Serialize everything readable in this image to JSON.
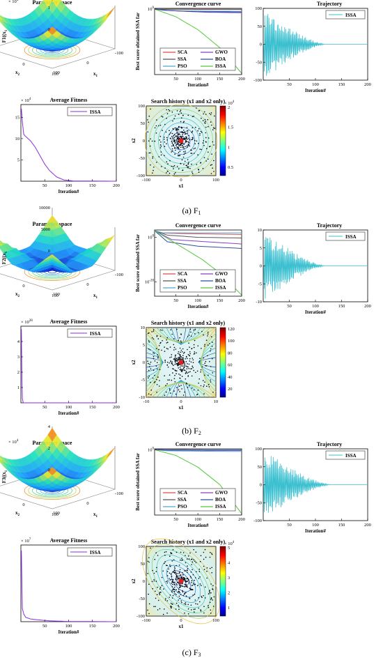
{
  "figure": {
    "captions": [
      {
        "letter": "(a)",
        "func": "F",
        "sub": "1"
      },
      {
        "letter": "(b)",
        "func": "F",
        "sub": "2"
      },
      {
        "letter": "(c)",
        "func": "F",
        "sub": "3"
      }
    ]
  },
  "colors": {
    "SCA": "#e04848",
    "SSA": "#555555",
    "PSO": "#4aa6d8",
    "GWO": "#8a3fc2",
    "BOA": "#2e4f9e",
    "ISSA": "#55c83a",
    "trajectory": "#3cc0d0",
    "fitness": "#8a2be2",
    "point": "#000000",
    "best": "#e02020"
  },
  "chart_data": [
    {
      "id": "f1-param",
      "type": "surface",
      "title": "Parameter space",
      "zlabel": "F1( x , x )",
      "zlabel_subs": [
        "1",
        "2"
      ],
      "xlabel": "x",
      "xlabel_sub": "1",
      "ylabel": "x",
      "ylabel_sub": "2",
      "exponent": "× 10^4",
      "zticks": [
        "0",
        "1",
        "2"
      ],
      "xticks": [
        "-100",
        "0",
        "100"
      ],
      "yticks": [
        "-100",
        "0",
        "100"
      ]
    },
    {
      "id": "f1-conv",
      "type": "line",
      "title": "Convergence curve",
      "ylabel": "Best score obtained SSA far",
      "xlabel": "Iteration#",
      "xlim": [
        1,
        200
      ],
      "yscale": "log",
      "xticks": [
        "50",
        "100",
        "150",
        "200"
      ],
      "yticks": [
        "10^0"
      ],
      "series": [
        {
          "name": "SCA",
          "x": [
            1,
            10,
            40,
            200
          ],
          "y": [
            1,
            0.95,
            0.9,
            0.85
          ]
        },
        {
          "name": "SSA",
          "x": [
            1,
            30,
            100,
            200
          ],
          "y": [
            1,
            0.9,
            0.85,
            0.84
          ]
        },
        {
          "name": "PSO",
          "x": [
            1,
            20,
            60,
            200
          ],
          "y": [
            1,
            0.4,
            0.2,
            0.15
          ]
        },
        {
          "name": "GWO",
          "x": [
            1,
            40,
            120,
            200
          ],
          "y": [
            1,
            0.25,
            0.06,
            0.04
          ]
        },
        {
          "name": "BOA",
          "x": [
            1,
            30,
            100,
            200
          ],
          "y": [
            1,
            0.3,
            0.1,
            0.08
          ]
        },
        {
          "name": "ISSA",
          "x": [
            1,
            50,
            100,
            150,
            200
          ],
          "y": [
            1,
            0.001,
            1e-08,
            1e-15,
            1e-25
          ]
        }
      ]
    },
    {
      "id": "f1-traj",
      "type": "oscillation",
      "title": "Trajectory",
      "legend": "ISSA",
      "xlabel": "Iteration#",
      "ylim": [
        -100,
        100
      ],
      "yticks": [
        "-100",
        "-50",
        "0",
        "50",
        "100"
      ],
      "xticks": [
        "50",
        "100",
        "150",
        "200"
      ],
      "amplitude": 100,
      "decay_end": 120,
      "xmax": 200
    },
    {
      "id": "f1-fit",
      "type": "line",
      "title": "Average Fitness",
      "legend": "ISSA",
      "xlabel": "Iteration#",
      "exponent": "× 10^4",
      "yticks": [
        "5",
        "10",
        "15"
      ],
      "xticks": [
        "50",
        "100",
        "150",
        "200"
      ],
      "xlim": [
        0,
        200
      ],
      "ylim": [
        0,
        18
      ],
      "series": [
        {
          "name": "ISSA",
          "x": [
            1,
            3,
            6,
            10,
            15,
            20,
            30,
            40,
            50,
            60,
            75,
            90,
            110,
            200
          ],
          "y": [
            17,
            14,
            11,
            10.5,
            10,
            9.5,
            8,
            6,
            4,
            2.5,
            1,
            0.3,
            0.05,
            0
          ]
        }
      ]
    },
    {
      "id": "f1-hist",
      "type": "scatter",
      "title": "Search history (x1 and x2 only)",
      "xlabel": "x1",
      "ylabel": "x2",
      "xlim": [
        -100,
        100
      ],
      "ylim": [
        -100,
        100
      ],
      "xticks": [
        "-100",
        "0",
        "100"
      ],
      "yticks": [
        "-100",
        "-50",
        "0",
        "50",
        "100"
      ],
      "colorbar_ticks": [
        "0.5",
        "1",
        "1.5",
        "2"
      ],
      "exponent": "× 10^4",
      "contour": "circles"
    },
    {
      "id": "f2-param",
      "type": "surface",
      "title": "Parameter space",
      "zlabel": "F2( x , x )",
      "zlabel_subs": [
        "1",
        "2"
      ],
      "xlabel": "x",
      "xlabel_sub": "1",
      "ylabel": "x",
      "ylabel_sub": "2",
      "exponent": "",
      "zticks": [
        "0",
        "5000",
        "10000"
      ],
      "xticks": [
        "-100",
        "0",
        "100"
      ],
      "yticks": [
        "-100",
        "0",
        "100"
      ]
    },
    {
      "id": "f2-conv",
      "type": "line",
      "title": "Convergence curve",
      "ylabel": "Best score obtained SSA far",
      "xlabel": "Iteration#",
      "xlim": [
        1,
        200
      ],
      "yscale": "log",
      "xticks": [
        "50",
        "100",
        "150",
        "200"
      ],
      "yticks": [
        "10^0",
        "10^-20"
      ],
      "series": [
        {
          "name": "SCA",
          "x": [
            1,
            10,
            60,
            200
          ],
          "y": [
            1000.0,
            100.0,
            50.0,
            20.0
          ]
        },
        {
          "name": "SSA",
          "x": [
            1,
            30,
            100,
            200
          ],
          "y": [
            1000.0,
            10.0,
            1,
            0.5
          ]
        },
        {
          "name": "PSO",
          "x": [
            1,
            20,
            80,
            200
          ],
          "y": [
            1000.0,
            100.0,
            100.0,
            100.0
          ]
        },
        {
          "name": "GWO",
          "x": [
            1,
            40,
            120,
            200
          ],
          "y": [
            1000.0,
            0.1,
            0.01,
            0.001
          ]
        },
        {
          "name": "BOA",
          "x": [
            1,
            30,
            100,
            200
          ],
          "y": [
            1000.0,
            0.01,
            0.0001,
            1e-05
          ]
        },
        {
          "name": "ISSA",
          "x": [
            1,
            60,
            110,
            150,
            200
          ],
          "y": [
            1000.0,
            0.0001,
            1e-10,
            1e-16,
            1e-26
          ]
        }
      ]
    },
    {
      "id": "f2-traj",
      "type": "oscillation",
      "title": "Trajectory",
      "legend": "ISSA",
      "xlabel": "Iteration#",
      "ylim": [
        -10,
        10
      ],
      "yticks": [
        "-10",
        "-5",
        "0",
        "5",
        "10"
      ],
      "xticks": [
        "50",
        "100",
        "150",
        "200"
      ],
      "amplitude": 10,
      "decay_end": 120,
      "xmax": 200
    },
    {
      "id": "f2-fit",
      "type": "line",
      "title": "Average Fitness",
      "legend": "ISSA",
      "xlabel": "Iteration#",
      "exponent": "× 10^28",
      "yticks": [
        "1",
        "2",
        "3",
        "4"
      ],
      "xticks": [
        "50",
        "100",
        "150",
        "200"
      ],
      "xlim": [
        0,
        200
      ],
      "ylim": [
        0,
        5
      ],
      "series": [
        {
          "name": "ISSA",
          "x": [
            1,
            2,
            3,
            5,
            200
          ],
          "y": [
            4.8,
            2,
            0.3,
            0,
            0
          ]
        }
      ]
    },
    {
      "id": "f2-hist",
      "type": "scatter",
      "title": "Search history (x1 and x2 only)",
      "xlabel": "x1",
      "ylabel": "x2",
      "xlim": [
        -10,
        10
      ],
      "ylim": [
        -10,
        10
      ],
      "xticks": [
        "-10",
        "0",
        "10"
      ],
      "yticks": [
        "-10",
        "-5",
        "0",
        "5",
        "10"
      ],
      "colorbar_ticks": [
        "20",
        "40",
        "60",
        "80",
        "100",
        "120"
      ],
      "exponent": "",
      "contour": "saddle"
    },
    {
      "id": "f3-param",
      "type": "surface",
      "title": "Parameter space",
      "zlabel": "F3( x , x )",
      "zlabel_subs": [
        "1",
        "2"
      ],
      "xlabel": "x",
      "xlabel_sub": "1",
      "ylabel": "x",
      "ylabel_sub": "2",
      "exponent": "× 10^4",
      "zticks": [
        "0",
        "2",
        "4"
      ],
      "xticks": [
        "-100",
        "0",
        "100"
      ],
      "yticks": [
        "-100",
        "0",
        "100"
      ]
    },
    {
      "id": "f3-conv",
      "type": "line",
      "title": "Convergence curve",
      "ylabel": "Best score obtained SSA far",
      "xlabel": "Iteration#",
      "xlim": [
        1,
        200
      ],
      "yscale": "log",
      "xticks": [
        "50",
        "100",
        "150",
        "200"
      ],
      "yticks": [
        "10^0"
      ],
      "series": [
        {
          "name": "SCA",
          "x": [
            1,
            20,
            80,
            200
          ],
          "y": [
            1,
            0.95,
            0.9,
            0.88
          ]
        },
        {
          "name": "SSA",
          "x": [
            1,
            30,
            100,
            200
          ],
          "y": [
            1,
            0.92,
            0.88,
            0.86
          ]
        },
        {
          "name": "PSO",
          "x": [
            1,
            30,
            100,
            200
          ],
          "y": [
            1,
            0.4,
            0.3,
            0.25
          ]
        },
        {
          "name": "GWO",
          "x": [
            1,
            40,
            120,
            200
          ],
          "y": [
            1,
            0.7,
            0.6,
            0.55
          ]
        },
        {
          "name": "BOA",
          "x": [
            1,
            30,
            100,
            200
          ],
          "y": [
            1,
            0.8,
            0.75,
            0.72
          ]
        },
        {
          "name": "ISSA",
          "x": [
            1,
            50,
            100,
            150,
            200
          ],
          "y": [
            1,
            0.01,
            1e-06,
            1e-12,
            1e-22
          ]
        }
      ]
    },
    {
      "id": "f3-traj",
      "type": "oscillation",
      "title": "Trajectory",
      "legend": "ISSA",
      "xlabel": "Iteration#",
      "ylim": [
        -100,
        100
      ],
      "yticks": [
        "-100",
        "-50",
        "0",
        "50",
        "100"
      ],
      "xticks": [
        "50",
        "100",
        "150",
        "200"
      ],
      "amplitude": 100,
      "decay_end": 130,
      "xmax": 200
    },
    {
      "id": "f3-fit",
      "type": "line",
      "title": "Average Fitness",
      "legend": "ISSA",
      "xlabel": "Iteration#",
      "exponent": "× 10^7",
      "yticks": [],
      "xticks": [
        "50",
        "100",
        "150",
        "200"
      ],
      "xlim": [
        0,
        200
      ],
      "ylim": [
        0,
        7
      ],
      "series": [
        {
          "name": "ISSA",
          "x": [
            1,
            3,
            6,
            10,
            20,
            40,
            60,
            100,
            200
          ],
          "y": [
            6.5,
            1.2,
            0.7,
            0.4,
            0.25,
            0.15,
            0.08,
            0.02,
            0
          ]
        }
      ]
    },
    {
      "id": "f3-hist",
      "type": "scatter",
      "title": "Search history (x1 and x2 only)",
      "xlabel": "x1",
      "ylabel": "x2",
      "xlim": [
        -100,
        100
      ],
      "ylim": [
        -100,
        100
      ],
      "xticks": [
        "-100",
        "0",
        "100"
      ],
      "yticks": [
        "-100",
        "-50",
        "0",
        "50",
        "100"
      ],
      "colorbar_ticks": [
        "1",
        "2",
        "3",
        "4",
        "5"
      ],
      "exponent": "× 10^4",
      "contour": "ellipse"
    }
  ],
  "legend_names": [
    "SCA",
    "SSA",
    "PSO",
    "GWO",
    "BOA",
    "ISSA"
  ]
}
